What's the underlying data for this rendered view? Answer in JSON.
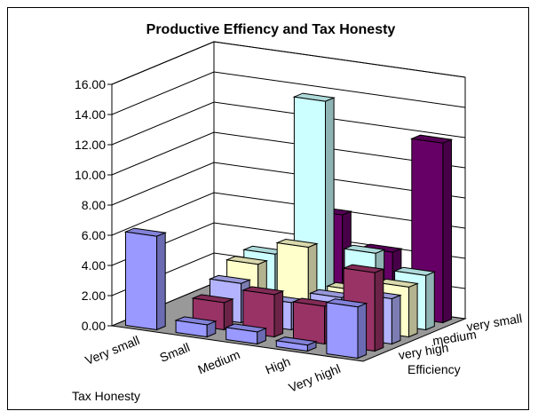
{
  "chart_data": {
    "type": "bar",
    "subtype": "3d-column",
    "title": "Productive Effiency and Tax Honesty",
    "xlabel": "Tax Honesty",
    "zlabel": "Efficiency",
    "ylabel": "",
    "ylim": [
      0,
      16
    ],
    "yticks": [
      "0.00",
      "2.00",
      "4.00",
      "6.00",
      "8.00",
      "10.00",
      "12.00",
      "14.00",
      "16.00"
    ],
    "categories": [
      "Very small",
      "Small",
      "Medium",
      "High",
      "Very highl"
    ],
    "depth_labels": [
      "very high",
      "medium",
      "very small"
    ],
    "grid": true,
    "legend": "none",
    "series": [
      {
        "values": [
          6.2,
          0.8,
          0.8,
          0.4,
          3.4
        ]
      },
      {
        "values": [
          0,
          1.8,
          2.8,
          2.5,
          5.2
        ]
      },
      {
        "values": [
          0,
          2.6,
          1.8,
          2.6,
          3.0
        ]
      },
      {
        "values": [
          0,
          3.4,
          5.0,
          2.6,
          3.3
        ]
      },
      {
        "values": [
          0,
          3.6,
          14.2,
          4.6,
          3.6
        ]
      },
      {
        "values": [
          0,
          0,
          6.2,
          4.2,
          11.9
        ]
      }
    ],
    "colors": [
      "#9999ff",
      "#993366",
      "#b3b3ff",
      "#ffffcc",
      "#ccffff",
      "#660066"
    ]
  }
}
